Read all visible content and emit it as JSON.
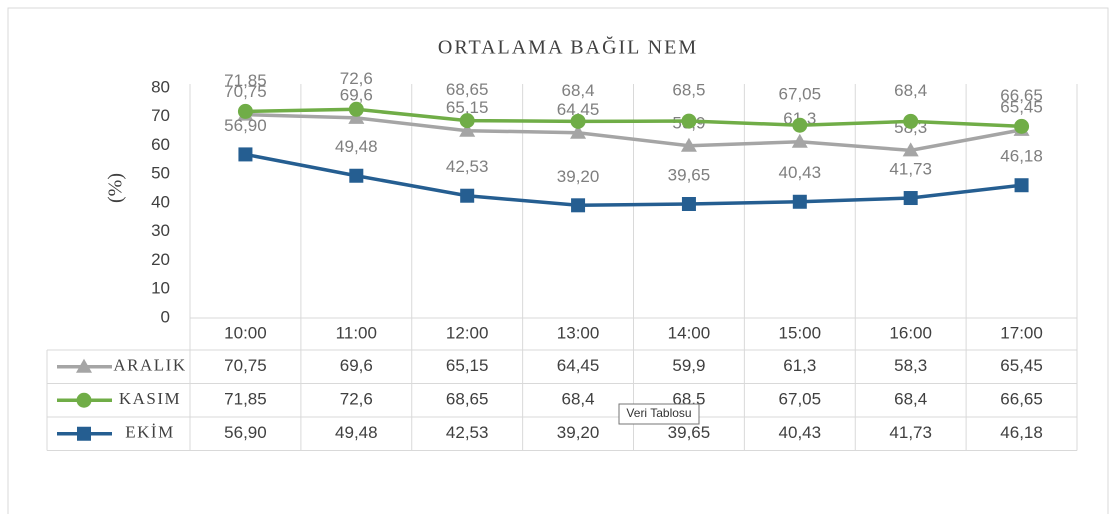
{
  "chart_data": {
    "type": "line",
    "title": "ORTALAMA BAĞIL NEM",
    "y_label": "(%)",
    "categories": [
      "10:00",
      "11:00",
      "12:00",
      "13:00",
      "14:00",
      "15:00",
      "16:00",
      "17:00"
    ],
    "ylim": [
      0,
      80
    ],
    "yticks": [
      0,
      10,
      20,
      30,
      40,
      50,
      60,
      70,
      80
    ],
    "series": [
      {
        "name": "ARALIK",
        "color": "#a5a5a5",
        "marker": "triangle",
        "values": [
          70.75,
          69.6,
          65.15,
          64.45,
          59.9,
          61.3,
          58.3,
          65.45
        ],
        "value_labels": [
          "70,75",
          "69,6",
          "65,15",
          "64,45",
          "59,9",
          "61,3",
          "58,3",
          "65,45"
        ]
      },
      {
        "name": "KASIM",
        "color": "#70ad47",
        "marker": "circle",
        "values": [
          71.85,
          72.6,
          68.65,
          68.4,
          68.5,
          67.05,
          68.4,
          66.65
        ],
        "value_labels": [
          "71,85",
          "72,6",
          "68,65",
          "68,4",
          "68,5",
          "67,05",
          "68,4",
          "66,65"
        ]
      },
      {
        "name": "EKİM",
        "color": "#255e91",
        "marker": "square",
        "values": [
          56.9,
          49.48,
          42.53,
          39.2,
          39.65,
          40.43,
          41.73,
          46.18
        ],
        "value_labels": [
          "56,90",
          "49,48",
          "42,53",
          "39,20",
          "39,65",
          "40,43",
          "41,73",
          "46,18"
        ]
      }
    ],
    "tooltip": "Veri Tablosu"
  }
}
